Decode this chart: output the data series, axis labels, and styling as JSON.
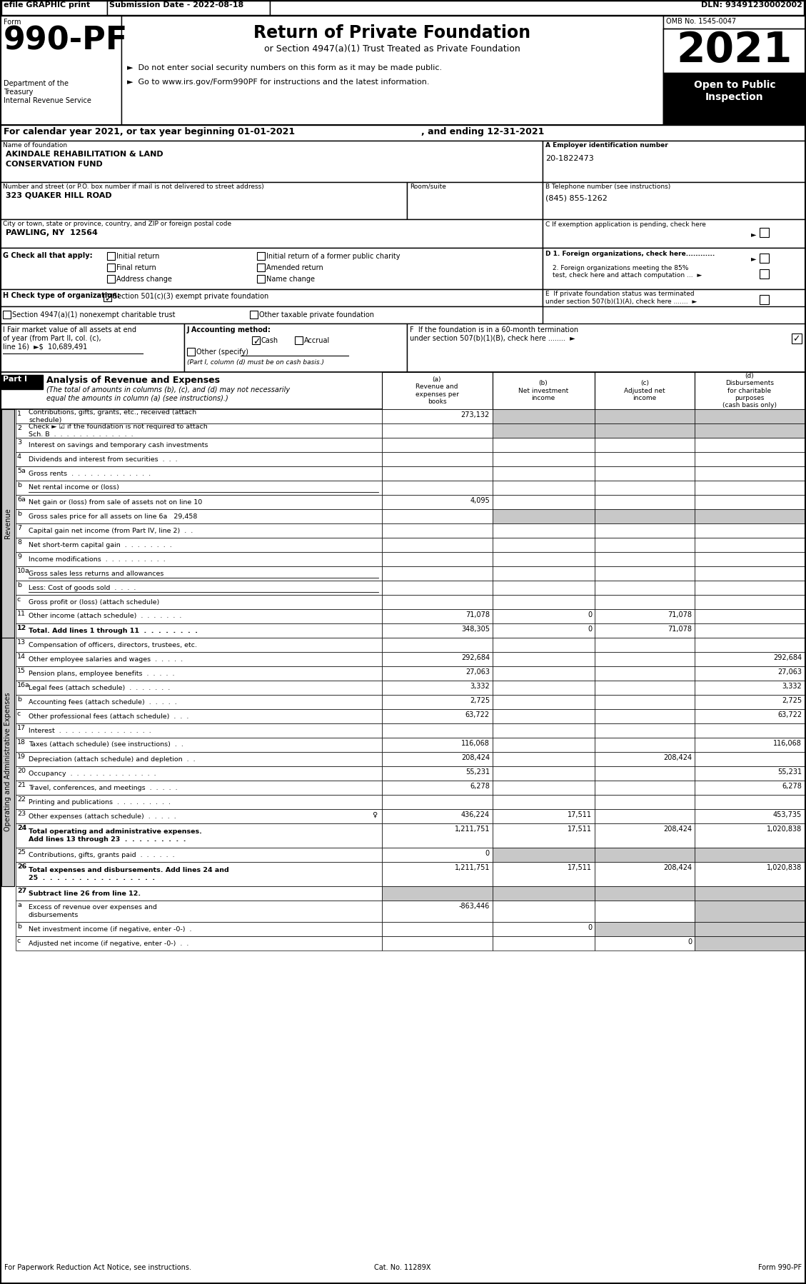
{
  "title_efile": "efile GRAPHIC print",
  "submission_date": "Submission Date - 2022-08-18",
  "dln": "DLN: 93491230002002",
  "form_label": "Form",
  "form_number": "990-PF",
  "dept1": "Department of the",
  "dept2": "Treasury",
  "dept3": "Internal Revenue Service",
  "return_title": "Return of Private Foundation",
  "return_subtitle": "or Section 4947(a)(1) Trust Treated as Private Foundation",
  "bullet1": "►  Do not enter social security numbers on this form as it may be made public.",
  "bullet2": "►  Go to www.irs.gov/Form990PF for instructions and the latest information.",
  "year_label": "2021",
  "open_label": "Open to Public",
  "inspection_label": "Inspection",
  "omb_label": "OMB No. 1545-0047",
  "cal_year_line": "For calendar year 2021, or tax year beginning 01-01-2021",
  "ending_line": ", and ending 12-31-2021",
  "name_label": "Name of foundation",
  "name_line1": "AKINDALE REHABILITATION & LAND",
  "name_line2": "CONSERVATION FUND",
  "ein_label": "A Employer identification number",
  "ein_value": "20-1822473",
  "address_label": "Number and street (or P.O. box number if mail is not delivered to street address)",
  "address_value": "323 QUAKER HILL ROAD",
  "room_label": "Room/suite",
  "phone_label": "B Telephone number (see instructions)",
  "phone_value": "(845) 855-1262",
  "city_label": "City or town, state or province, country, and ZIP or foreign postal code",
  "city_value": "PAWLING, NY  12564",
  "c_label": "C If exemption application is pending, check here",
  "g_label": "G Check all that apply:",
  "d1_label": "D 1. Foreign organizations, check here............",
  "d2_label": "2. Foreign organizations meeting the 85%",
  "d2b_label": "test, check here and attach computation ...",
  "e_label": "E  If private foundation status was terminated",
  "e2_label": "under section 507(b)(1)(A), check here .......",
  "h_label": "H Check type of organization:",
  "h_501": "Section 501(c)(3) exempt private foundation",
  "h_4947": "Section 4947(a)(1) nonexempt charitable trust",
  "h_other": "Other taxable private foundation",
  "i_label1": "I Fair market value of all assets at end",
  "i_label2": "of year (from Part II, col. (c),",
  "i_label3": "line 16)  ►$  10,689,491",
  "j_label": "J Accounting method:",
  "j_cash": "Cash",
  "j_accrual": "Accrual",
  "j_other": "Other (specify)",
  "j_note": "(Part I, column (d) must be on cash basis.)",
  "f_label1": "F  If the foundation is in a 60-month termination",
  "f_label2": "under section 507(b)(1)(B), check here ........",
  "part1_label": "Part I",
  "part1_title": "Analysis of Revenue and Expenses",
  "part1_desc1": "(The total of amounts in columns (b), (c), and (d) may not necessarily",
  "part1_desc2": "equal the amounts in column (a) (see instructions).)",
  "col_a_hdr": "(a)\nRevenue and\nexpenses per\nbooks",
  "col_b_hdr": "(b)\nNet investment\nincome",
  "col_c_hdr": "(c)\nAdjusted net\nincome",
  "col_d_hdr": "(d)\nDisbursements\nfor charitable\npurposes\n(cash basis only)",
  "revenue_rows": [
    {
      "num": "1",
      "label": "Contributions, gifts, grants, etc., received (attach\nschedule)",
      "a": "273,132",
      "b": "",
      "c": "",
      "d": "",
      "shb": true,
      "shc": true,
      "shd": true
    },
    {
      "num": "2",
      "label": "Check ► ☑ if the foundation is not required to attach\nSch. B  .  .  .  .  .  .  .  .  .  .  .  .  .",
      "a": "",
      "b": "",
      "c": "",
      "d": "",
      "shb": true,
      "shc": true,
      "shd": true
    },
    {
      "num": "3",
      "label": "Interest on savings and temporary cash investments",
      "a": "",
      "b": "",
      "c": "",
      "d": ""
    },
    {
      "num": "4",
      "label": "Dividends and interest from securities  .  .  .",
      "a": "",
      "b": "",
      "c": "",
      "d": ""
    },
    {
      "num": "5a",
      "label": "Gross rents  .  .  .  .  .  .  .  .  .  .  .  .  .",
      "a": "",
      "b": "",
      "c": "",
      "d": ""
    },
    {
      "num": "b",
      "label": "Net rental income or (loss)",
      "a": "",
      "b": "",
      "c": "",
      "d": "",
      "underline_label": true
    },
    {
      "num": "6a",
      "label": "Net gain or (loss) from sale of assets not on line 10",
      "a": "4,095",
      "b": "",
      "c": "",
      "d": ""
    },
    {
      "num": "b",
      "label": "Gross sales price for all assets on line 6a   29,458",
      "a": "",
      "b": "",
      "c": "",
      "d": "",
      "shb": true,
      "shc": true,
      "shd": true
    },
    {
      "num": "7",
      "label": "Capital gain net income (from Part IV, line 2)  .  .",
      "a": "",
      "b": "",
      "c": "",
      "d": ""
    },
    {
      "num": "8",
      "label": "Net short-term capital gain  .  .  .  .  .  .  .  .",
      "a": "",
      "b": "",
      "c": "",
      "d": ""
    },
    {
      "num": "9",
      "label": "Income modifications  .  .  .  .  .  .  .  .  .  .",
      "a": "",
      "b": "",
      "c": "",
      "d": ""
    },
    {
      "num": "10a",
      "label": "Gross sales less returns and allowances",
      "a": "",
      "b": "",
      "c": "",
      "d": "",
      "underline_label": true
    },
    {
      "num": "b",
      "label": "Less: Cost of goods sold  .  .  .  .",
      "a": "",
      "b": "",
      "c": "",
      "d": "",
      "underline_label": true
    },
    {
      "num": "c",
      "label": "Gross profit or (loss) (attach schedule)",
      "a": "",
      "b": "",
      "c": "",
      "d": ""
    },
    {
      "num": "11",
      "label": "Other income (attach schedule)  .  .  .  .  .  .  .",
      "a": "71,078",
      "b": "0",
      "c": "71,078",
      "d": ""
    },
    {
      "num": "12",
      "label": "Total. Add lines 1 through 11  .  .  .  .  .  .  .  .",
      "a": "348,305",
      "b": "0",
      "c": "71,078",
      "d": "",
      "bold": true
    }
  ],
  "expense_rows": [
    {
      "num": "13",
      "label": "Compensation of officers, directors, trustees, etc.",
      "a": "",
      "b": "",
      "c": "",
      "d": ""
    },
    {
      "num": "14",
      "label": "Other employee salaries and wages  .  .  .  .  .",
      "a": "292,684",
      "b": "",
      "c": "",
      "d": "292,684"
    },
    {
      "num": "15",
      "label": "Pension plans, employee benefits  .  .  .  .  .",
      "a": "27,063",
      "b": "",
      "c": "",
      "d": "27,063"
    },
    {
      "num": "16a",
      "label": "Legal fees (attach schedule)  .  .  .  .  .  .  .",
      "a": "3,332",
      "b": "",
      "c": "",
      "d": "3,332"
    },
    {
      "num": "b",
      "label": "Accounting fees (attach schedule)  .  .  .  .  .",
      "a": "2,725",
      "b": "",
      "c": "",
      "d": "2,725"
    },
    {
      "num": "c",
      "label": "Other professional fees (attach schedule)  .  .  .",
      "a": "63,722",
      "b": "",
      "c": "",
      "d": "63,722"
    },
    {
      "num": "17",
      "label": "Interest  .  .  .  .  .  .  .  .  .  .  .  .  .  .  .",
      "a": "",
      "b": "",
      "c": "",
      "d": ""
    },
    {
      "num": "18",
      "label": "Taxes (attach schedule) (see instructions)  .  .",
      "a": "116,068",
      "b": "",
      "c": "",
      "d": "116,068"
    },
    {
      "num": "19",
      "label": "Depreciation (attach schedule) and depletion  .  .",
      "a": "208,424",
      "b": "",
      "c": "208,424",
      "d": ""
    },
    {
      "num": "20",
      "label": "Occupancy  .  .  .  .  .  .  .  .  .  .  .  .  .  .",
      "a": "55,231",
      "b": "",
      "c": "",
      "d": "55,231"
    },
    {
      "num": "21",
      "label": "Travel, conferences, and meetings  .  .  .  .  .",
      "a": "6,278",
      "b": "",
      "c": "",
      "d": "6,278"
    },
    {
      "num": "22",
      "label": "Printing and publications  .  .  .  .  .  .  .  .  .",
      "a": "",
      "b": "",
      "c": "",
      "d": ""
    },
    {
      "num": "23",
      "label": "Other expenses (attach schedule)  .  .  .  .  .",
      "a": "436,224",
      "b": "17,511",
      "c": "",
      "d": "453,735",
      "icon23": true
    },
    {
      "num": "24",
      "label": "Total operating and administrative expenses.\nAdd lines 13 through 23  .  .  .  .  .  .  .  .  .",
      "a": "1,211,751",
      "b": "17,511",
      "c": "208,424",
      "d": "1,020,838",
      "bold": true,
      "dh": 34
    },
    {
      "num": "25",
      "label": "Contributions, gifts, grants paid  .  .  .  .  .  .",
      "a": "0",
      "b": "",
      "c": "",
      "d": "",
      "shb": true,
      "shc": true,
      "shd": true
    },
    {
      "num": "26",
      "label": "Total expenses and disbursements. Add lines 24 and\n25  .  .  .  .  .  .  .  .  .  .  .  .  .  .  .  .",
      "a": "1,211,751",
      "b": "17,511",
      "c": "208,424",
      "d": "1,020,838",
      "bold": true,
      "dh": 34
    }
  ],
  "subtract_rows": [
    {
      "num": "27",
      "label": "Subtract line 26 from line 12.",
      "bold": true
    },
    {
      "num": "a",
      "label": "Excess of revenue over expenses and\ndisbursements",
      "a": "-863,446",
      "b": "",
      "c": "",
      "d": "",
      "dh": 30
    },
    {
      "num": "b",
      "label": "Net investment income (if negative, enter -0-)  .",
      "a": "",
      "b": "0",
      "c": "",
      "d": "",
      "shc": true
    },
    {
      "num": "c",
      "label": "Adjusted net income (if negative, enter -0-)  .  .",
      "a": "",
      "b": "",
      "c": "0",
      "d": ""
    }
  ],
  "footer_left": "For Paperwork Reduction Act Notice, see instructions.",
  "footer_cat": "Cat. No. 11289X",
  "footer_right": "Form 990-PF",
  "shaded": "#c8c8c8",
  "white": "#ffffff",
  "black": "#000000"
}
